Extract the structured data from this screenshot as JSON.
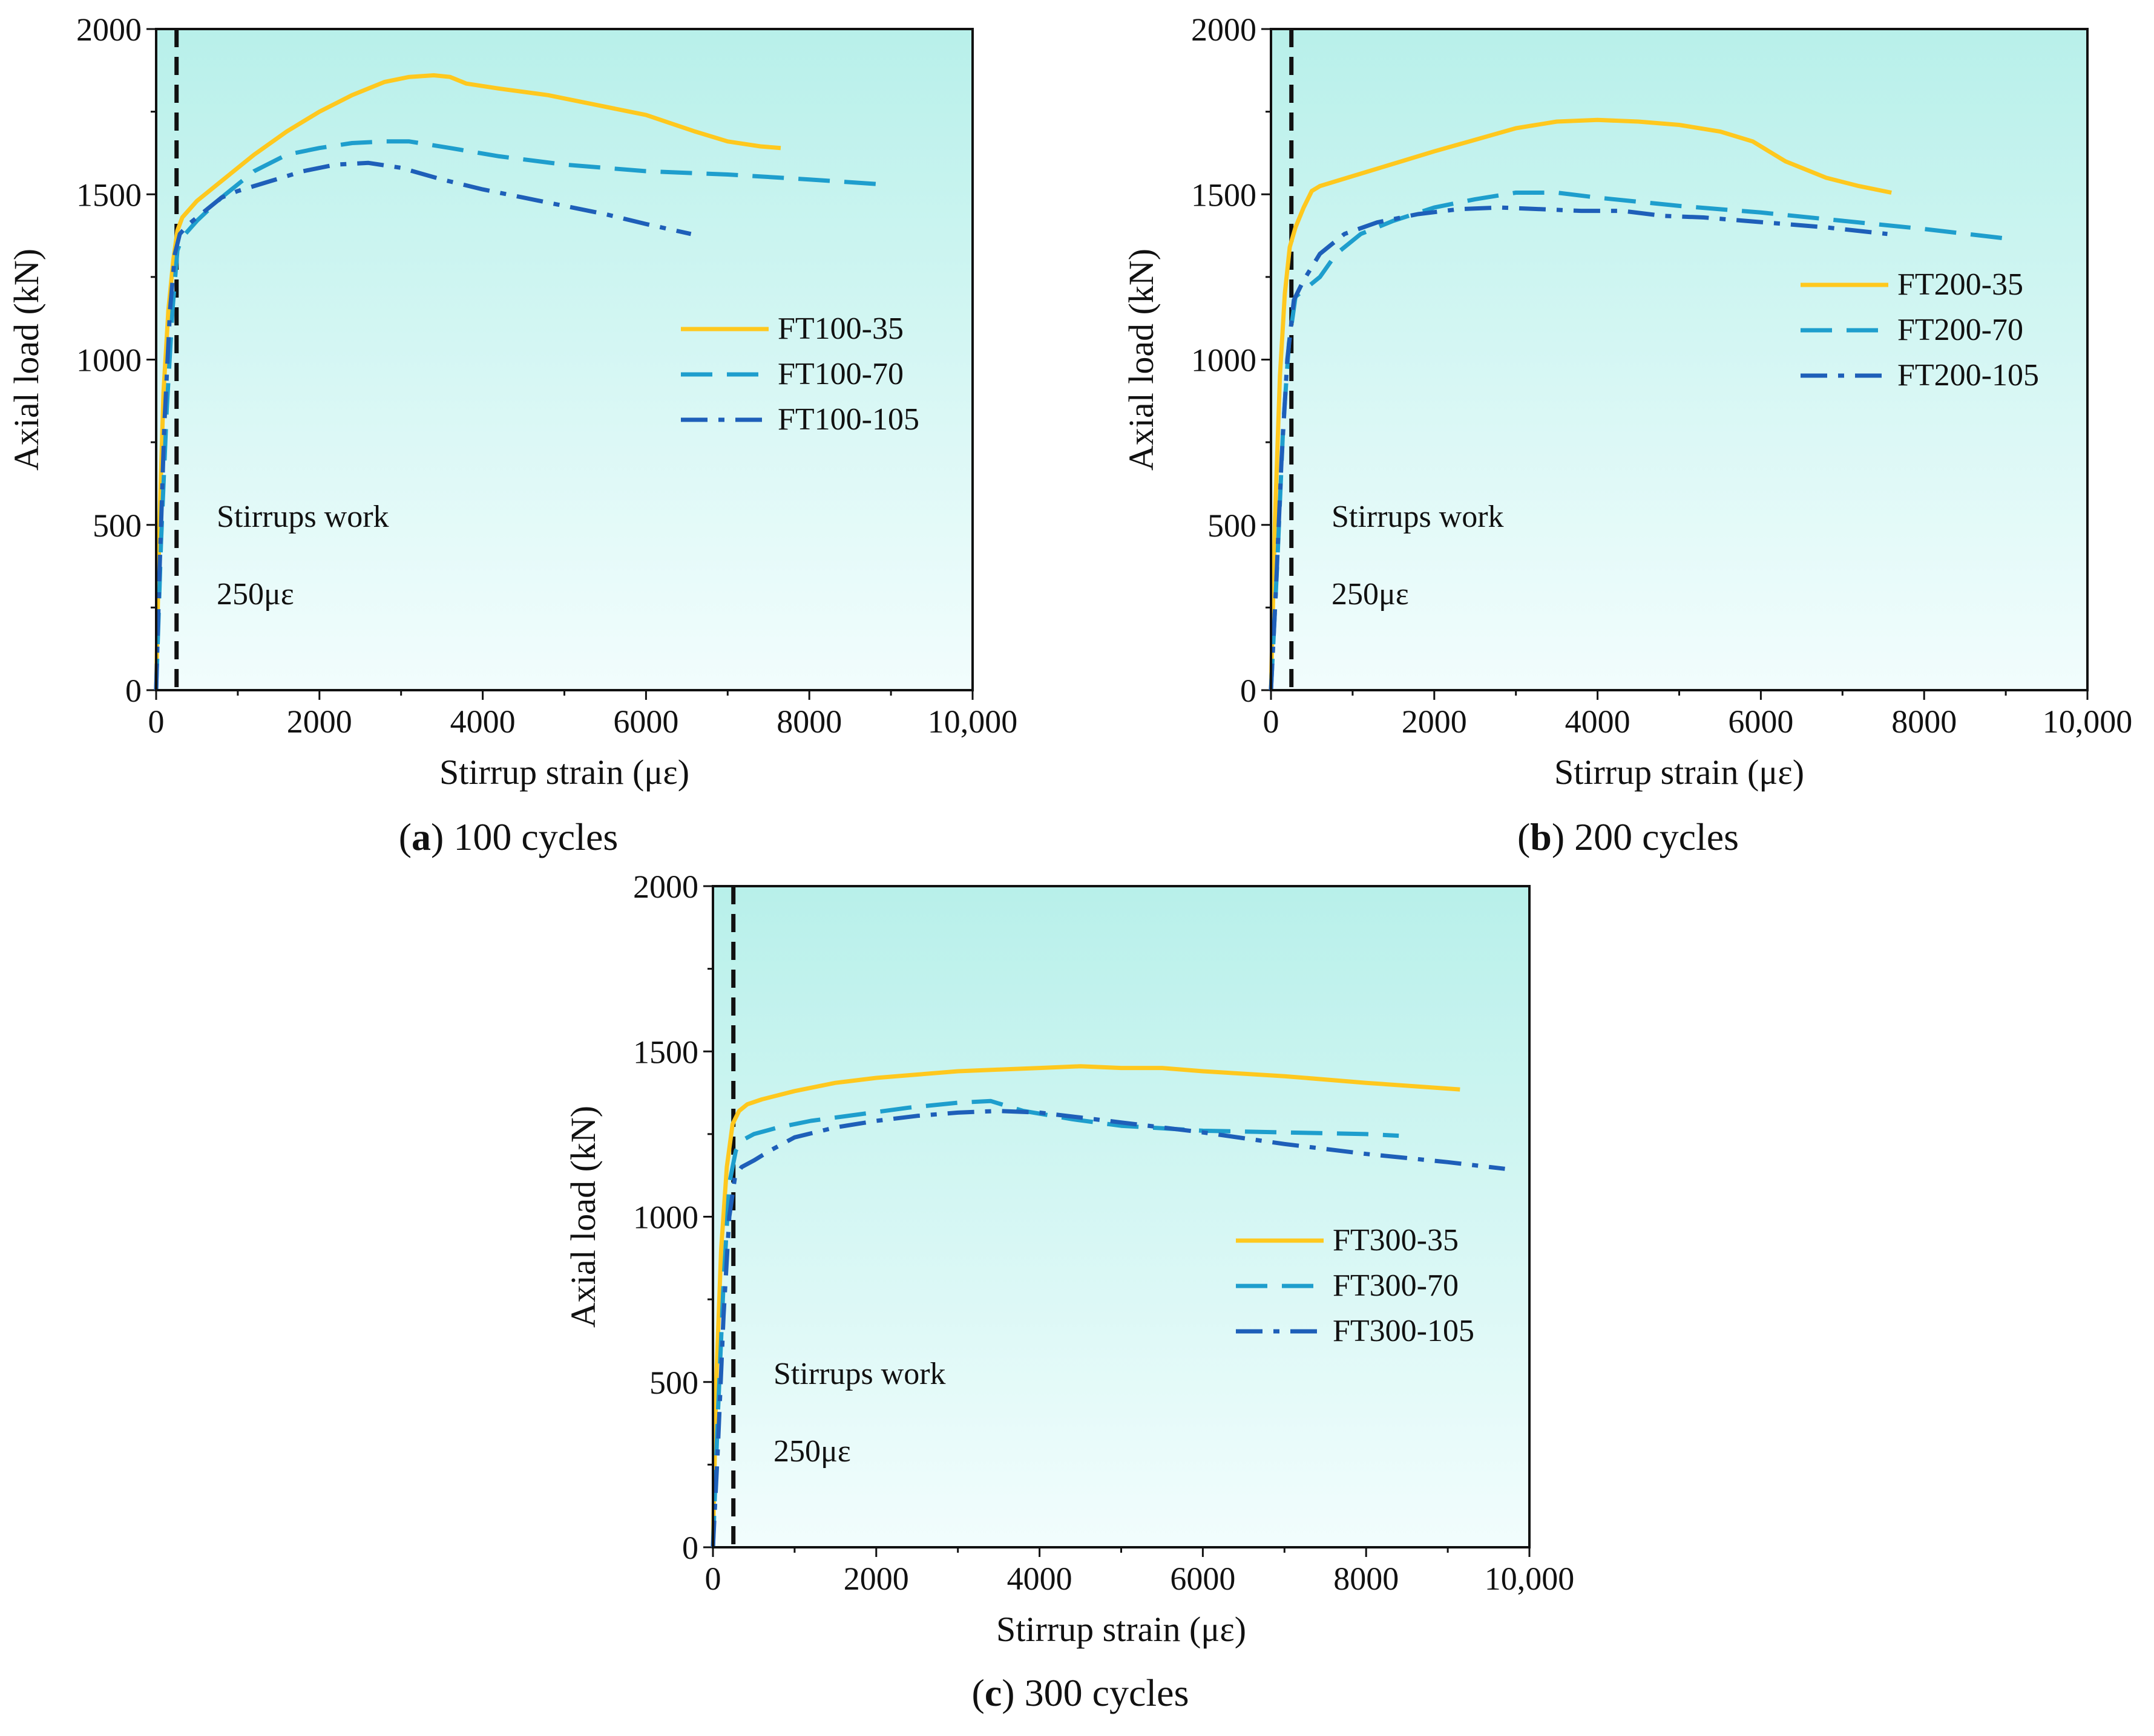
{
  "chart_data": [
    {
      "id": "a",
      "type": "line",
      "caption_letter": "a",
      "caption_text": "100 cycles",
      "xlabel": "Stirrup strain (με)",
      "ylabel": "Axial load (kN)",
      "xlim": [
        0,
        10000
      ],
      "ylim": [
        0,
        2000
      ],
      "xticks": [
        0,
        2000,
        4000,
        6000,
        8000,
        10000
      ],
      "xtick_labels": [
        "0",
        "2000",
        "4000",
        "6000",
        "8000",
        "10,000"
      ],
      "yticks": [
        0,
        500,
        1000,
        1500,
        2000
      ],
      "ytick_labels": [
        "0",
        "500",
        "1000",
        "1500",
        "2000"
      ],
      "reference_line_x": 250,
      "annotations": [
        "Stirrups work",
        "250με"
      ],
      "legend_position": "middle-right",
      "series": [
        {
          "name": "FT100-35",
          "style": "solid",
          "color": "#FFC81E",
          "x": [
            0,
            40,
            90,
            150,
            210,
            260,
            320,
            500,
            800,
            1200,
            1600,
            2000,
            2400,
            2800,
            3100,
            3400,
            3600,
            3800,
            4200,
            4800,
            5400,
            6000,
            6600,
            7000,
            7400,
            7650
          ],
          "y": [
            0,
            500,
            900,
            1150,
            1300,
            1390,
            1430,
            1480,
            1540,
            1620,
            1690,
            1750,
            1800,
            1840,
            1855,
            1860,
            1855,
            1835,
            1820,
            1800,
            1770,
            1740,
            1690,
            1660,
            1645,
            1640
          ]
        },
        {
          "name": "FT100-70",
          "style": "dashed",
          "color": "#1E9ECD",
          "x": [
            0,
            60,
            130,
            200,
            260,
            320,
            500,
            800,
            1200,
            1600,
            2000,
            2400,
            2800,
            3100,
            3600,
            4200,
            5000,
            6000,
            7000,
            8000,
            8900
          ],
          "y": [
            0,
            450,
            850,
            1150,
            1330,
            1370,
            1420,
            1490,
            1570,
            1620,
            1640,
            1655,
            1660,
            1660,
            1640,
            1615,
            1590,
            1570,
            1560,
            1545,
            1530
          ]
        },
        {
          "name": "FT100-105",
          "style": "dashdot",
          "color": "#1E5FB9",
          "x": [
            0,
            40,
            100,
            170,
            230,
            290,
            400,
            600,
            800,
            1000,
            1400,
            1800,
            2200,
            2600,
            3000,
            3500,
            4000,
            4500,
            5000,
            5500,
            6000,
            6550
          ],
          "y": [
            0,
            350,
            800,
            1150,
            1320,
            1380,
            1410,
            1450,
            1490,
            1510,
            1540,
            1570,
            1590,
            1595,
            1580,
            1545,
            1515,
            1490,
            1465,
            1440,
            1410,
            1380
          ]
        }
      ],
      "legend_labels": [
        "FT100-35",
        "FT100-70",
        "FT100-105"
      ]
    },
    {
      "id": "b",
      "type": "line",
      "caption_letter": "b",
      "caption_text": "200 cycles",
      "xlabel": "Stirrup strain (με)",
      "ylabel": "Axial load (kN)",
      "xlim": [
        0,
        10000
      ],
      "ylim": [
        0,
        2000
      ],
      "xticks": [
        0,
        2000,
        4000,
        6000,
        8000,
        10000
      ],
      "xtick_labels": [
        "0",
        "2000",
        "4000",
        "6000",
        "8000",
        "10,000"
      ],
      "yticks": [
        0,
        500,
        1000,
        1500,
        2000
      ],
      "ytick_labels": [
        "0",
        "500",
        "1000",
        "1500",
        "2000"
      ],
      "reference_line_x": 250,
      "annotations": [
        "Stirrups work",
        "250με"
      ],
      "legend_position": "upper-right",
      "series": [
        {
          "name": "FT200-35",
          "style": "solid",
          "color": "#FFC81E",
          "x": [
            0,
            50,
            110,
            170,
            230,
            300,
            400,
            500,
            600,
            800,
            1200,
            1600,
            2000,
            2500,
            3000,
            3500,
            4000,
            4500,
            5000,
            5500,
            5900,
            6100,
            6300,
            6800,
            7200,
            7600
          ],
          "y": [
            0,
            520,
            950,
            1200,
            1340,
            1400,
            1460,
            1510,
            1525,
            1540,
            1570,
            1600,
            1630,
            1665,
            1700,
            1720,
            1725,
            1720,
            1710,
            1690,
            1660,
            1630,
            1600,
            1550,
            1525,
            1505
          ]
        },
        {
          "name": "FT200-70",
          "style": "dashed",
          "color": "#1E9ECD",
          "x": [
            0,
            80,
            150,
            220,
            300,
            450,
            600,
            800,
            1100,
            1500,
            2000,
            2500,
            3000,
            3500,
            4000,
            5000,
            6000,
            7000,
            8000,
            9050
          ],
          "y": [
            0,
            400,
            800,
            1050,
            1190,
            1220,
            1250,
            1320,
            1380,
            1420,
            1460,
            1485,
            1505,
            1505,
            1490,
            1465,
            1445,
            1420,
            1395,
            1365
          ]
        },
        {
          "name": "FT200-105",
          "style": "dashdot",
          "color": "#1E5FB9",
          "x": [
            0,
            60,
            130,
            200,
            280,
            400,
            600,
            900,
            1300,
            1800,
            2300,
            2800,
            3300,
            3800,
            4300,
            4800,
            5300,
            5800,
            6300,
            6800,
            7550
          ],
          "y": [
            0,
            300,
            700,
            1000,
            1180,
            1240,
            1320,
            1380,
            1415,
            1440,
            1455,
            1460,
            1455,
            1450,
            1450,
            1435,
            1430,
            1420,
            1410,
            1400,
            1380
          ]
        }
      ],
      "legend_labels": [
        "FT200-35",
        "FT200-70",
        "FT200-105"
      ]
    },
    {
      "id": "c",
      "type": "line",
      "caption_letter": "c",
      "caption_text": "300 cycles",
      "xlabel": "Stirrup strain (με)",
      "ylabel": "Axial load (kN)",
      "xlim": [
        0,
        10000
      ],
      "ylim": [
        0,
        2000
      ],
      "xticks": [
        0,
        2000,
        4000,
        6000,
        8000,
        10000
      ],
      "xtick_labels": [
        "0",
        "2000",
        "4000",
        "6000",
        "8000",
        "10,000"
      ],
      "yticks": [
        0,
        500,
        1000,
        1500,
        2000
      ],
      "ytick_labels": [
        "0",
        "500",
        "1000",
        "1500",
        "2000"
      ],
      "reference_line_x": 250,
      "annotations": [
        "Stirrups work",
        "250με"
      ],
      "legend_position": "right",
      "series": [
        {
          "name": "FT300-35",
          "style": "solid",
          "color": "#FFC81E",
          "x": [
            0,
            40,
            100,
            170,
            240,
            320,
            420,
            600,
            1000,
            1500,
            2000,
            2500,
            3000,
            3500,
            4000,
            4500,
            5000,
            5500,
            6000,
            7000,
            8000,
            9150
          ],
          "y": [
            0,
            500,
            900,
            1150,
            1280,
            1320,
            1340,
            1355,
            1380,
            1405,
            1420,
            1430,
            1440,
            1445,
            1450,
            1455,
            1450,
            1450,
            1440,
            1425,
            1405,
            1385
          ]
        },
        {
          "name": "FT300-70",
          "style": "dashed",
          "color": "#1E9ECD",
          "x": [
            0,
            60,
            130,
            200,
            280,
            350,
            500,
            800,
            1200,
            1800,
            2400,
            3000,
            3400,
            3800,
            4400,
            5000,
            6000,
            7000,
            8000,
            8400
          ],
          "y": [
            0,
            400,
            800,
            1100,
            1200,
            1230,
            1250,
            1270,
            1290,
            1310,
            1330,
            1345,
            1350,
            1320,
            1295,
            1275,
            1260,
            1255,
            1250,
            1245
          ]
        },
        {
          "name": "FT300-105",
          "style": "dashdot",
          "color": "#1E5FB9",
          "x": [
            0,
            60,
            130,
            200,
            270,
            350,
            500,
            700,
            1000,
            1500,
            2000,
            2500,
            3000,
            3500,
            4000,
            4500,
            5000,
            5500,
            6000,
            7000,
            8000,
            9000,
            9700
          ],
          "y": [
            0,
            300,
            700,
            1000,
            1120,
            1150,
            1170,
            1200,
            1240,
            1270,
            1290,
            1305,
            1315,
            1320,
            1315,
            1300,
            1285,
            1270,
            1255,
            1220,
            1190,
            1165,
            1145
          ]
        }
      ],
      "legend_labels": [
        "FT300-35",
        "FT300-70",
        "FT300-105"
      ]
    }
  ]
}
